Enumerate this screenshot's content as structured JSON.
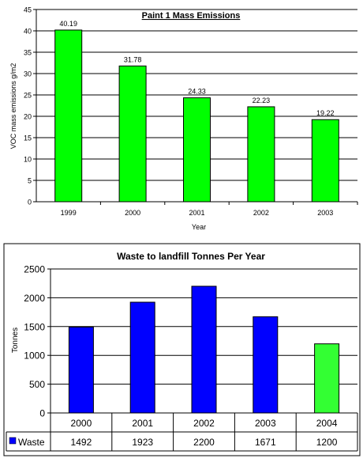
{
  "chart_data": [
    {
      "type": "bar",
      "title": "Paint 1 Mass Emissions",
      "xlabel": "Year",
      "ylabel": "VOC mass emissions g/m2",
      "categories": [
        "1999",
        "2000",
        "2001",
        "2002",
        "2003"
      ],
      "values": [
        40.19,
        31.78,
        24.33,
        22.23,
        19.22
      ],
      "data_labels": [
        "40.19",
        "31.78",
        "24.33",
        "22.23",
        "19.22"
      ],
      "ylim": [
        0,
        45
      ],
      "yticks": [
        "0",
        "5",
        "10",
        "15",
        "20",
        "25",
        "30",
        "35",
        "40",
        "45"
      ],
      "grid": true,
      "bar_color": "#00ff00"
    },
    {
      "type": "bar",
      "title": "Waste to landfill Tonnes Per Year",
      "xlabel": "",
      "ylabel": "Tonnes",
      "categories": [
        "2000",
        "2001",
        "2002",
        "2003",
        "2004"
      ],
      "series": [
        {
          "name": "Waste",
          "values": [
            1492,
            1923,
            2200,
            1671,
            1200
          ]
        }
      ],
      "table_values": [
        "1492",
        "1923",
        "2200",
        "1671",
        "1200"
      ],
      "bar_colors": [
        "#0000ff",
        "#0000ff",
        "#0000ff",
        "#0000ff",
        "#33ff33"
      ],
      "legend_color": "#0000ff",
      "ylim": [
        0,
        2500
      ],
      "yticks": [
        "0",
        "500",
        "1000",
        "1500",
        "2000",
        "2500"
      ],
      "grid": true,
      "data_table": true
    }
  ]
}
